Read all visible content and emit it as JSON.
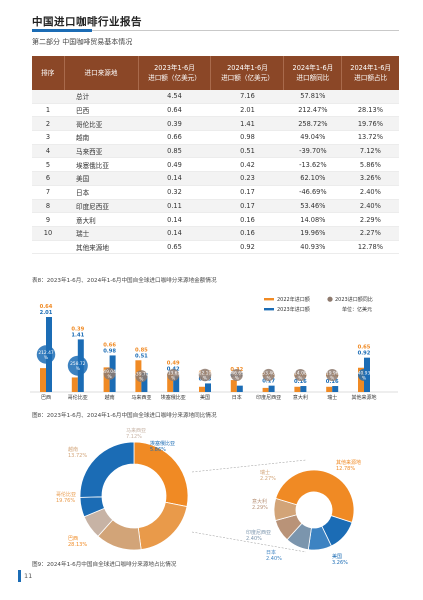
{
  "header": {
    "title": "中国进口咖啡行业报告",
    "subtitle": "第二部分 中国咖啡贸易基本情况"
  },
  "table": {
    "headers": [
      "排序",
      "进口来源地",
      "2023年1-6月\n进口额（亿美元）",
      "2024年1-6月\n进口额（亿美元）",
      "2024年1-6月\n进口额同比",
      "2024年1-6月\n进口额占比"
    ],
    "rows": [
      [
        "",
        "总计",
        "4.54",
        "7.16",
        "57.81%",
        ""
      ],
      [
        "1",
        "巴西",
        "0.64",
        "2.01",
        "212.47%",
        "28.13%"
      ],
      [
        "2",
        "哥伦比亚",
        "0.39",
        "1.41",
        "258.72%",
        "19.76%"
      ],
      [
        "3",
        "越南",
        "0.66",
        "0.98",
        "49.04%",
        "13.72%"
      ],
      [
        "4",
        "马来西亚",
        "0.85",
        "0.51",
        "-39.70%",
        "7.12%"
      ],
      [
        "5",
        "埃塞俄比亚",
        "0.49",
        "0.42",
        "-13.62%",
        "5.86%"
      ],
      [
        "6",
        "美国",
        "0.14",
        "0.23",
        "62.10%",
        "3.26%"
      ],
      [
        "7",
        "日本",
        "0.32",
        "0.17",
        "-46.69%",
        "2.40%"
      ],
      [
        "8",
        "印度尼西亚",
        "0.11",
        "0.17",
        "53.46%",
        "2.40%"
      ],
      [
        "9",
        "意大利",
        "0.14",
        "0.16",
        "14.08%",
        "2.29%"
      ],
      [
        "10",
        "瑞士",
        "0.14",
        "0.16",
        "19.96%",
        "2.27%"
      ],
      [
        "",
        "其他来源地",
        "0.65",
        "0.92",
        "40.93%",
        "12.78%"
      ]
    ]
  },
  "captions": {
    "table": "表8：2023年1-6月、2024年1-6月中国自全球进口咖啡分来源地金额情况",
    "bar": "图8：2023年1-6月、2024年1-6月中国自全球进口咖啡分来源地同比情况",
    "pie": "图9：2024年1-6月中国自全球进口咖啡分来源地占比情况"
  },
  "colors": {
    "accent": "#1b6cb5",
    "table_header": "#8b4727",
    "bar_2022": "#f08a24",
    "bar_2023": "#1b6cb5",
    "bubble": "#8e7a6e"
  },
  "chart_data": [
    {
      "type": "bar",
      "categories": [
        "巴西",
        "哥伦比亚",
        "越南",
        "马来西亚",
        "埃塞俄比亚",
        "美国",
        "日本",
        "印度尼西亚",
        "意大利",
        "瑞士",
        "其他来源地"
      ],
      "series": [
        {
          "name": "2022年进口额",
          "values": [
            0.64,
            0.39,
            0.66,
            0.85,
            0.49,
            0.14,
            0.32,
            0.11,
            0.14,
            0.14,
            0.65
          ]
        },
        {
          "name": "2023年进口额",
          "values": [
            2.01,
            1.41,
            0.98,
            0.51,
            0.42,
            0.23,
            0.17,
            0.17,
            0.16,
            0.16,
            0.92
          ]
        },
        {
          "name": "2023进口额同比",
          "values": [
            212.47,
            258.72,
            49.04,
            -39.7,
            -13.62,
            62.1,
            -46.69,
            53.46,
            14.08,
            19.96,
            40.93
          ]
        }
      ],
      "bubble_labels": [
        "212.47\n%",
        "258.72\n%",
        "49.04\n%",
        "-39.70\n%",
        "-13.62\n%",
        "62.10\n%",
        "-46.69\n%",
        "53.46\n%",
        "14.08\n%",
        "19.96\n%",
        "40.93\n%"
      ],
      "legend": [
        "2022年进口额",
        "2023进口额同比",
        "2023年进口额"
      ],
      "unit": "单位：亿美元",
      "legend_position": "top-right"
    },
    {
      "type": "pie",
      "title": "",
      "slices": [
        {
          "label": "巴西",
          "value": 28.13,
          "text": "28.13%"
        },
        {
          "label": "哥伦比亚",
          "value": 19.76,
          "text": "19.76%"
        },
        {
          "label": "越南",
          "value": 13.72,
          "text": "13.72%"
        },
        {
          "label": "马来西亚",
          "value": 7.12,
          "text": "7.12%"
        },
        {
          "label": "埃塞俄比亚",
          "value": 5.86,
          "text": "5.86%"
        },
        {
          "label": "其他",
          "value": 25.41,
          "text": ""
        }
      ]
    },
    {
      "type": "pie",
      "title": "",
      "slices": [
        {
          "label": "美国",
          "value": 3.26,
          "text": "3.26%"
        },
        {
          "label": "日本",
          "value": 2.4,
          "text": "2.40%"
        },
        {
          "label": "印度尼西亚",
          "value": 2.4,
          "text": "2.40%"
        },
        {
          "label": "意大利",
          "value": 2.29,
          "text": "2.29%"
        },
        {
          "label": "瑞士",
          "value": 2.27,
          "text": "2.27%"
        },
        {
          "label": "其他来源地",
          "value": 12.78,
          "text": "12.78%"
        }
      ]
    }
  ],
  "page_number": "11"
}
